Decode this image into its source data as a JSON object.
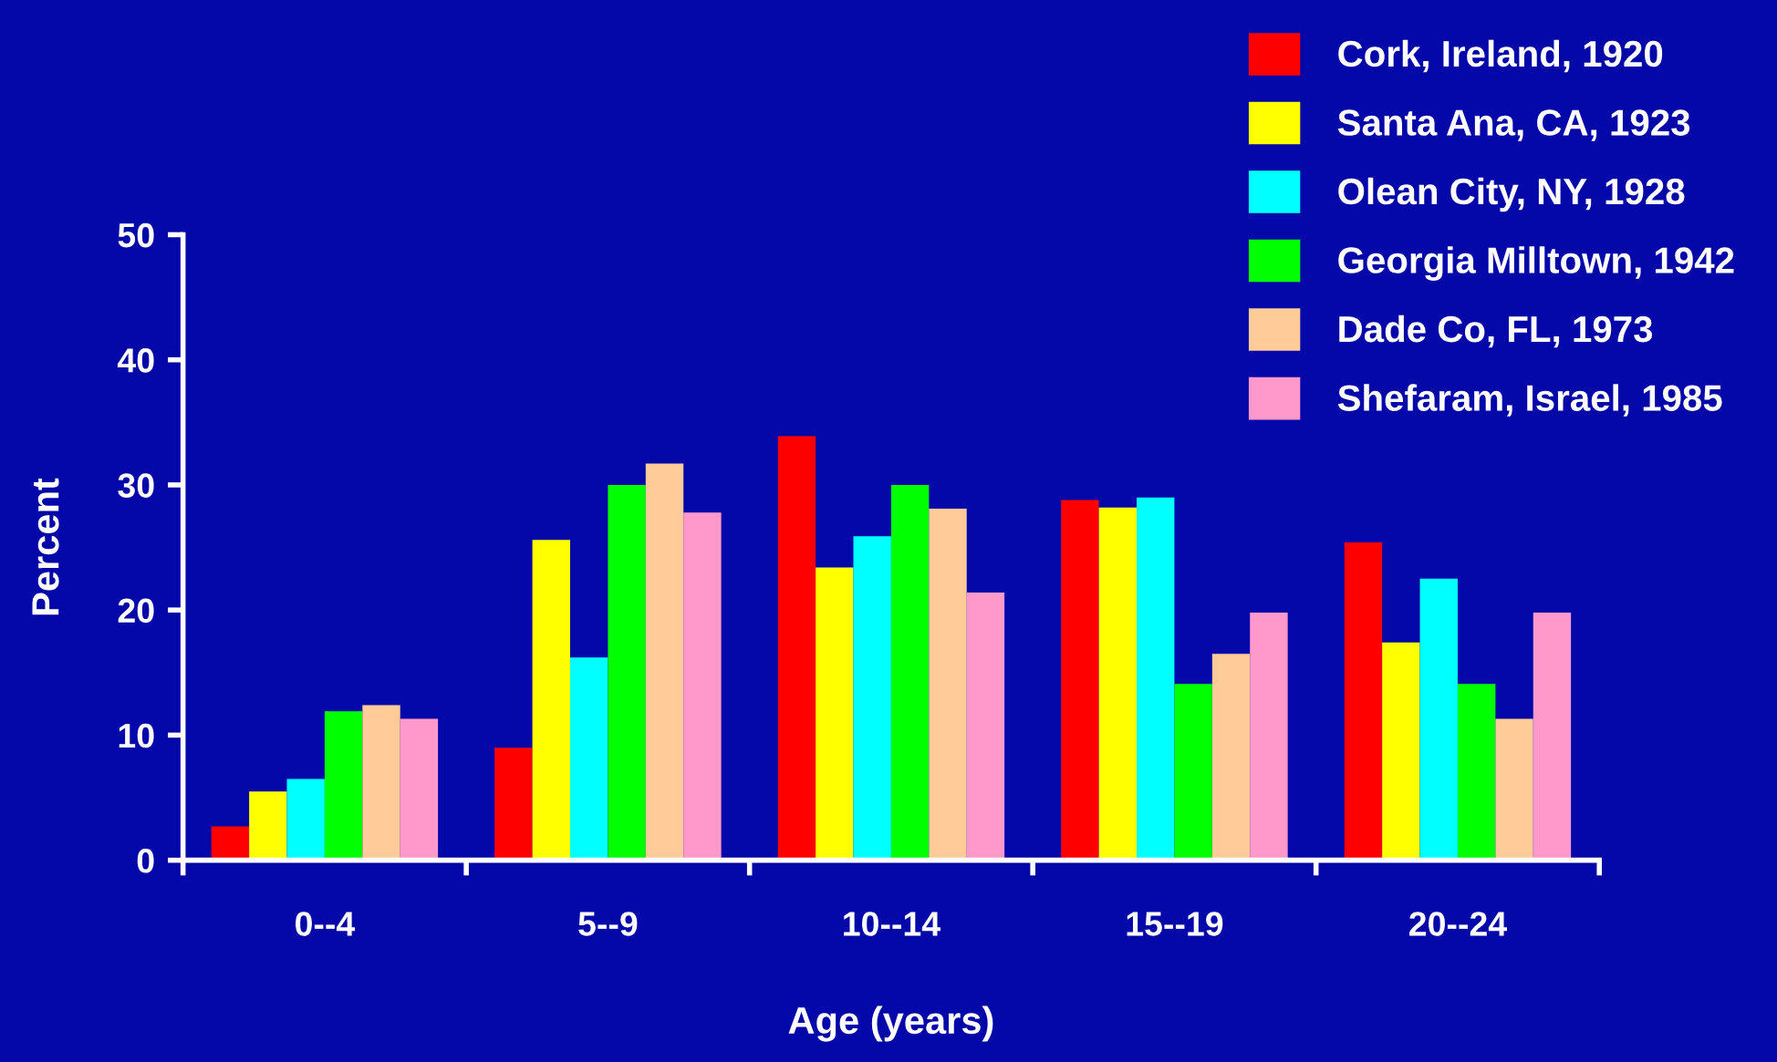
{
  "chart_data": {
    "type": "bar",
    "xlabel": "Age (years)",
    "ylabel": "Percent",
    "categories": [
      "0--4",
      "5--9",
      "10--14",
      "15--19",
      "20--24"
    ],
    "series": [
      {
        "name": "Cork, Ireland, 1920",
        "color": "#ff0000",
        "values": [
          2.7,
          9.0,
          33.9,
          28.8,
          25.4
        ]
      },
      {
        "name": "Santa Ana, CA, 1923",
        "color": "#ffff00",
        "values": [
          5.5,
          25.6,
          23.4,
          28.2,
          17.4
        ]
      },
      {
        "name": "Olean City, NY, 1928",
        "color": "#00ffff",
        "values": [
          6.5,
          16.2,
          25.9,
          29.0,
          22.5
        ]
      },
      {
        "name": "Georgia Milltown, 1942",
        "color": "#00ff00",
        "values": [
          11.9,
          30.0,
          30.0,
          14.1,
          14.1
        ]
      },
      {
        "name": "Dade Co, FL, 1973",
        "color": "#ffcc99",
        "values": [
          12.4,
          31.7,
          28.1,
          16.5,
          11.3
        ]
      },
      {
        "name": "Shefaram, Israel, 1985",
        "color": "#ff99cc",
        "values": [
          11.3,
          27.8,
          21.4,
          19.8,
          19.8
        ]
      }
    ],
    "ylim": [
      0,
      50
    ],
    "yticks": [
      0,
      10,
      20,
      30,
      40,
      50
    ],
    "grid": false,
    "legend": "top right"
  }
}
